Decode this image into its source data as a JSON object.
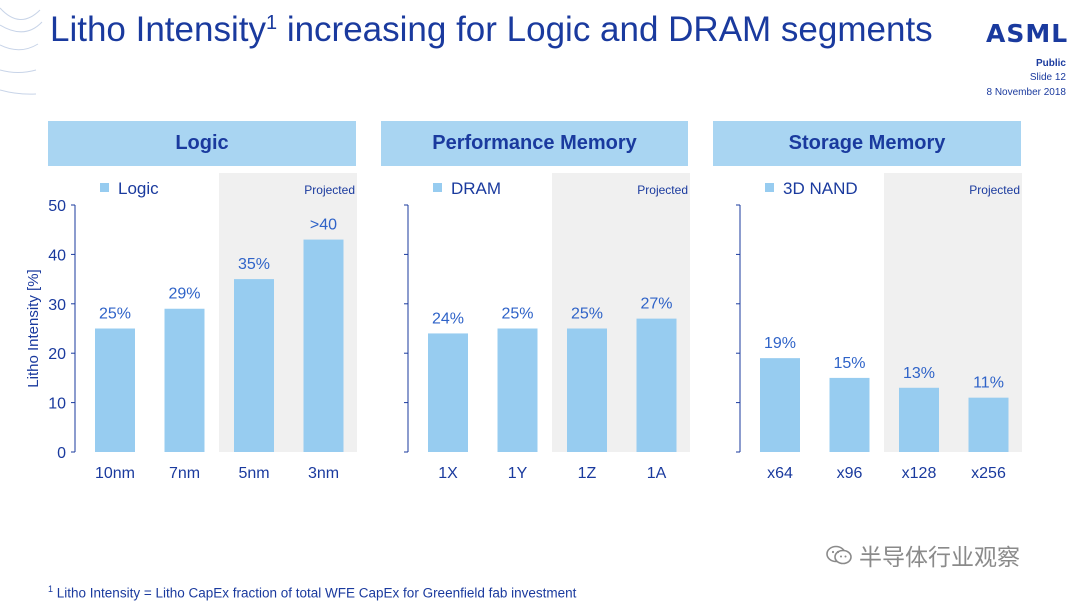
{
  "slide": {
    "title_main": "Litho Intensity",
    "title_sup": "1",
    "title_rest": " increasing for Logic and DRAM segments",
    "logo": "ASML",
    "classification": "Public",
    "slide_number": "Slide 12",
    "date": "8 November 2018",
    "footnote_marker": "1",
    "footnote_text": " Litho Intensity = Litho CapEx fraction of total WFE CapEx for Greenfield fab investment",
    "watermark": "半导体行业观察"
  },
  "colors": {
    "bar": "#97ccf0",
    "header_bg": "#a9d5f2",
    "text": "#1a3a9e",
    "projected_bg": "#f0f0f0",
    "axis": "#1a3a9e"
  },
  "chart_data": [
    {
      "type": "bar",
      "panel_title": "Logic",
      "legend": "Logic",
      "projected_label": "Projected",
      "categories": [
        "10nm",
        "7nm",
        "5nm",
        "3nm"
      ],
      "values": [
        25,
        29,
        35,
        43
      ],
      "data_labels": [
        "25%",
        "29%",
        "35%",
        ">40"
      ],
      "projected_from_index": 2,
      "ylabel": "Litho Intensity [%]",
      "ylim": [
        0,
        50
      ],
      "yticks": [
        0,
        10,
        20,
        30,
        40,
        50
      ]
    },
    {
      "type": "bar",
      "panel_title": "Performance Memory",
      "legend": "DRAM",
      "projected_label": "Projected",
      "categories": [
        "1X",
        "1Y",
        "1Z",
        "1A"
      ],
      "values": [
        24,
        25,
        25,
        27
      ],
      "data_labels": [
        "24%",
        "25%",
        "25%",
        "27%"
      ],
      "projected_from_index": 2,
      "ylim": [
        0,
        50
      ]
    },
    {
      "type": "bar",
      "panel_title": "Storage Memory",
      "legend": "3D NAND",
      "projected_label": "Projected",
      "categories": [
        "x64",
        "x96",
        "x128",
        "x256"
      ],
      "values": [
        19,
        15,
        13,
        11
      ],
      "data_labels": [
        "19%",
        "15%",
        "13%",
        "11%"
      ],
      "projected_from_index": 2,
      "ylim": [
        0,
        50
      ]
    }
  ]
}
